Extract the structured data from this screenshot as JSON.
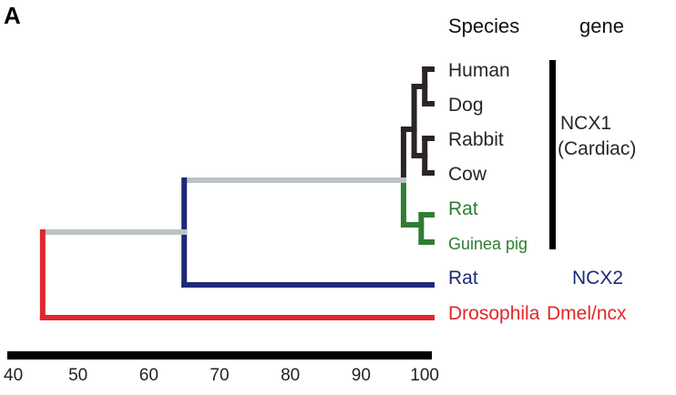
{
  "panel_label": "A",
  "headers": {
    "species": "Species",
    "gene": "gene"
  },
  "colors": {
    "ncx1_cardiac": "#2b2426",
    "ncx1_rodent": "#2f7d32",
    "ncx2": "#1d2a7a",
    "dmel": "#e0262b",
    "connector": "#bcc2c6",
    "axis": "#000000"
  },
  "taxa": [
    {
      "name": "Human",
      "group": "ncx1_cardiac"
    },
    {
      "name": "Dog",
      "group": "ncx1_cardiac"
    },
    {
      "name": "Rabbit",
      "group": "ncx1_cardiac"
    },
    {
      "name": "Cow",
      "group": "ncx1_cardiac"
    },
    {
      "name": "Rat",
      "group": "ncx1_rodent"
    },
    {
      "name": "Guinea pig",
      "group": "ncx1_rodent"
    },
    {
      "name": "Rat",
      "group": "ncx2"
    },
    {
      "name": "Drosophila",
      "group": "dmel"
    }
  ],
  "genes": {
    "ncx1_line1": "NCX1",
    "ncx1_line2": "(Cardiac)",
    "ncx2": "NCX2",
    "dmel": "Dmel/ncx"
  },
  "axis": {
    "min": 40,
    "max": 100,
    "ticks": [
      "40",
      "50",
      "60",
      "70",
      "80",
      "90",
      "100"
    ]
  },
  "nodes": {
    "root": 45,
    "ncx1_ncx2": 65,
    "cardiac_rodent": 96,
    "cardiac_inner": 97.5,
    "cardiac_pair": 99,
    "rodent_pair": 98.5
  }
}
